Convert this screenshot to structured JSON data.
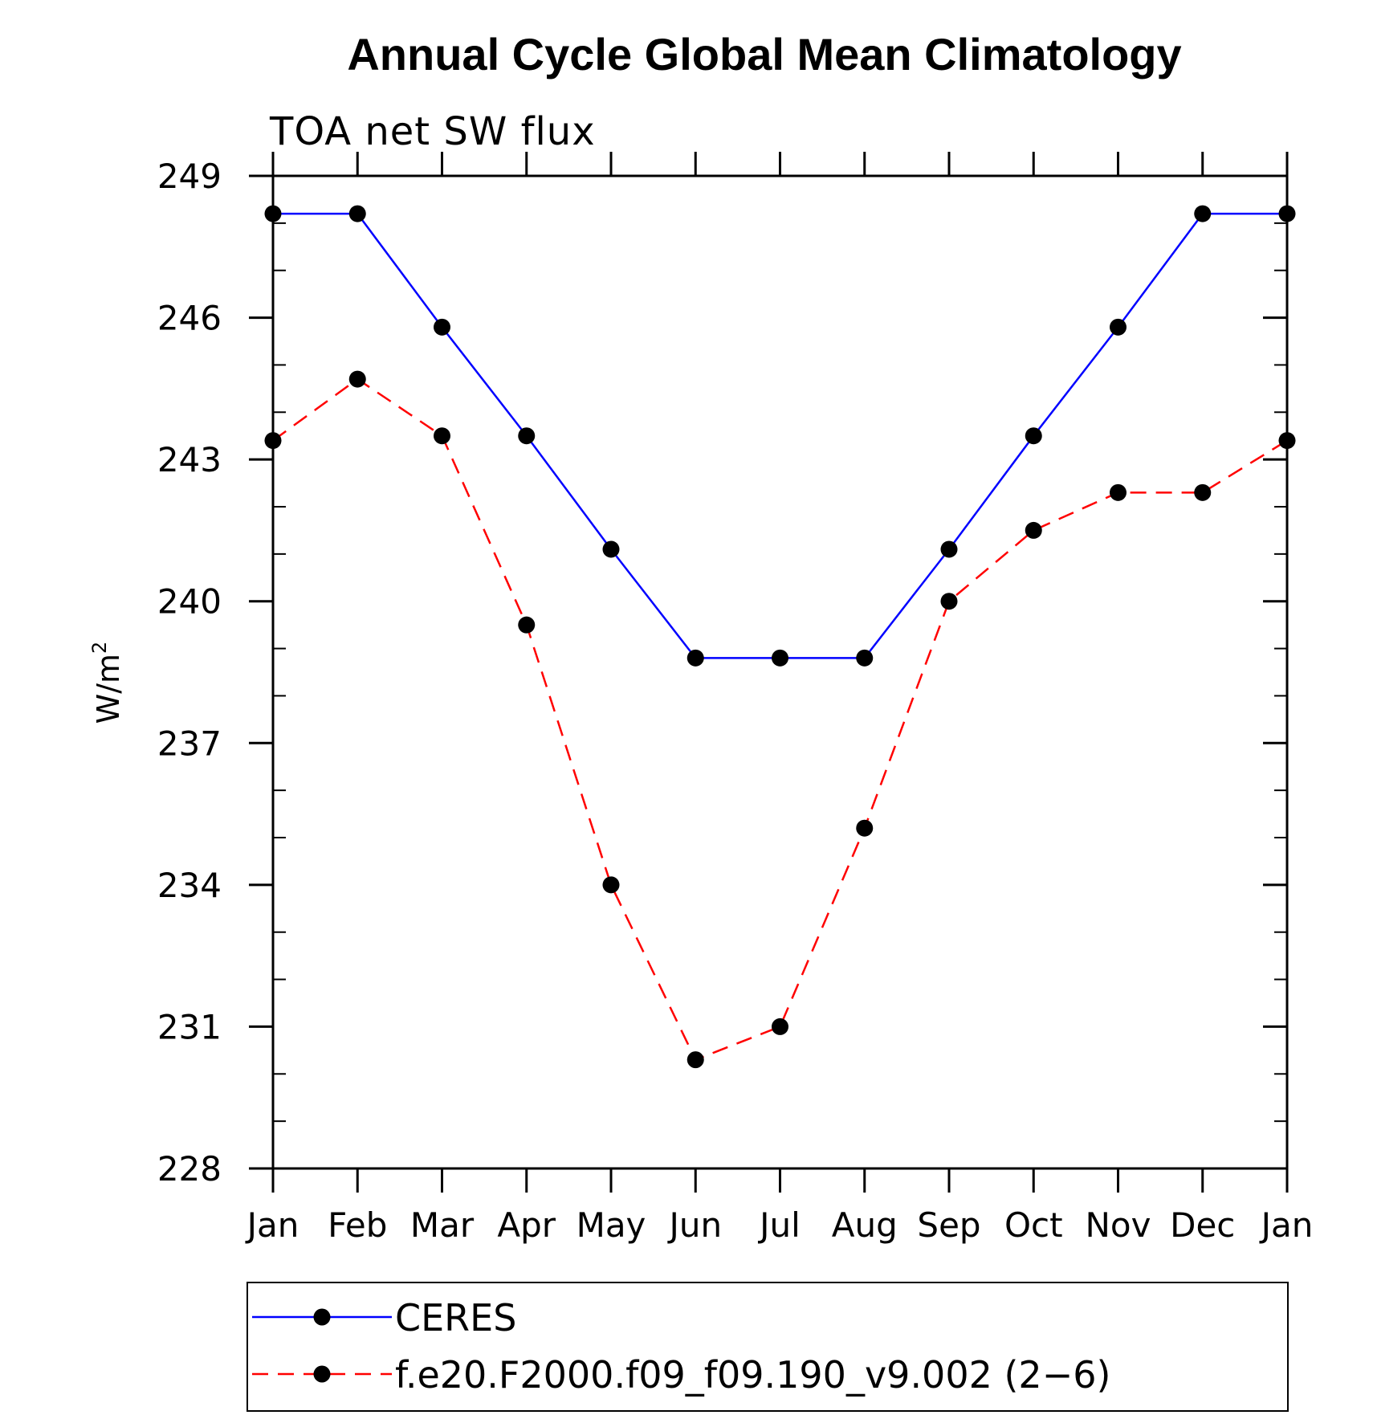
{
  "chart_data": {
    "type": "line",
    "title": "Annual Cycle Global Mean Climatology",
    "subtitle": "TOA net SW flux",
    "ylabel_base": "W/m",
    "ylabel_sup": "2",
    "xlabel": "",
    "categories": [
      "Jan",
      "Feb",
      "Mar",
      "Apr",
      "May",
      "Jun",
      "Jul",
      "Aug",
      "Sep",
      "Oct",
      "Nov",
      "Dec",
      "Jan"
    ],
    "yticks": [
      228,
      231,
      234,
      237,
      240,
      243,
      246,
      249
    ],
    "ylim": [
      228,
      249
    ],
    "grid": false,
    "legend_position": "bottom",
    "series": [
      {
        "name": "CERES",
        "color": "#0000ff",
        "dash": "solid",
        "values": [
          248.2,
          248.2,
          245.8,
          243.5,
          241.1,
          238.8,
          238.8,
          238.8,
          241.1,
          243.5,
          245.8,
          248.2,
          248.2
        ]
      },
      {
        "name": "f.e20.F2000.f09_f09.190_v9.002 (2−6)",
        "color": "#ff0000",
        "dash": "dashed",
        "values": [
          243.4,
          244.7,
          243.5,
          239.5,
          234.0,
          230.3,
          231.0,
          235.2,
          240.0,
          241.5,
          242.3,
          242.3,
          243.4
        ]
      }
    ]
  }
}
